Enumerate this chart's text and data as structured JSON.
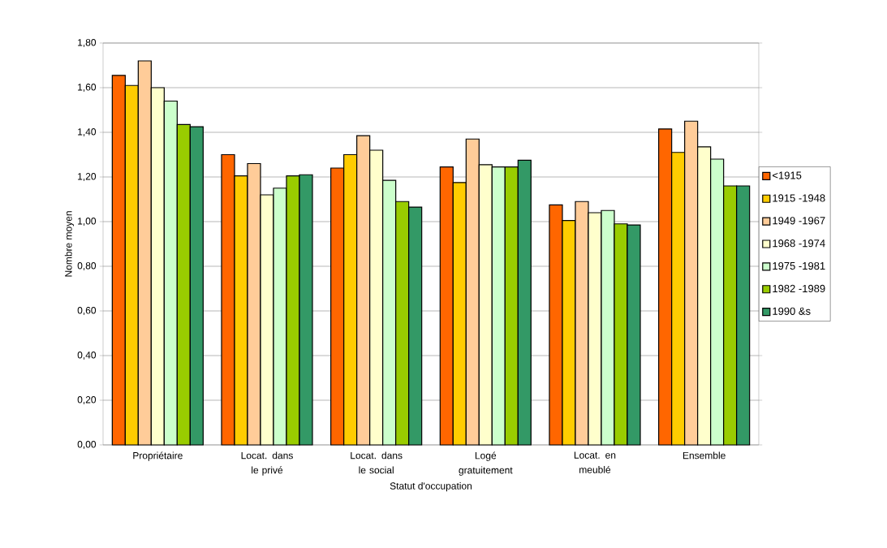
{
  "chart_data": {
    "type": "bar",
    "xlabel": "Statut d'occupation",
    "ylabel": "Nombre moyen",
    "categories": [
      "Propriétaire",
      "Locat. dans le privé",
      "Locat. dans le social",
      "Logé gratuitement",
      "Locat. en meublé",
      "Ensemble"
    ],
    "series": [
      {
        "name": "<1915",
        "color": "#ff6600",
        "values": [
          1.655,
          1.3,
          1.24,
          1.245,
          1.075,
          1.415
        ]
      },
      {
        "name": "1915 -1948",
        "color": "#ffcc00",
        "values": [
          1.61,
          1.205,
          1.3,
          1.175,
          1.005,
          1.31
        ]
      },
      {
        "name": "1949 -1967",
        "color": "#ffcc99",
        "values": [
          1.72,
          1.26,
          1.385,
          1.37,
          1.09,
          1.45
        ]
      },
      {
        "name": "1968 -1974",
        "color": "#ffffcc",
        "values": [
          1.6,
          1.12,
          1.32,
          1.255,
          1.04,
          1.335
        ]
      },
      {
        "name": "1975 -1981",
        "color": "#ccffcc",
        "values": [
          1.54,
          1.15,
          1.185,
          1.245,
          1.05,
          1.28
        ]
      },
      {
        "name": "1982 -1989",
        "color": "#99cc00",
        "values": [
          1.435,
          1.205,
          1.09,
          1.245,
          0.99,
          1.16
        ]
      },
      {
        "name": "1990 &s",
        "color": "#339966",
        "values": [
          1.425,
          1.21,
          1.065,
          1.275,
          0.985,
          1.16
        ]
      }
    ],
    "ylim": [
      0,
      1.8
    ],
    "yticks": [
      {
        "value": 0,
        "label": "0,00"
      },
      {
        "value": 0.2,
        "label": "0,20"
      },
      {
        "value": 0.4,
        "label": "0,40"
      },
      {
        "value": 0.6,
        "label": "0,60"
      },
      {
        "value": 0.8,
        "label": "0,80"
      },
      {
        "value": 1.0,
        "label": "1,00"
      },
      {
        "value": 1.2,
        "label": "1,20"
      },
      {
        "value": 1.4,
        "label": "1,40"
      },
      {
        "value": 1.6,
        "label": "1,60"
      },
      {
        "value": 1.8,
        "label": "1,80"
      }
    ],
    "grid": "y",
    "legend": "right"
  }
}
